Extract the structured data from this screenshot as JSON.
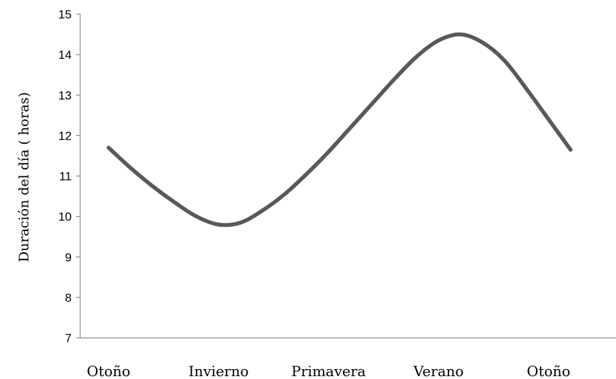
{
  "chart_data": {
    "type": "line",
    "title": "",
    "xlabel": "",
    "ylabel": "Duración del día ( horas)",
    "ylim": [
      7,
      15
    ],
    "yticks": [
      7,
      8,
      9,
      10,
      11,
      12,
      13,
      14,
      15
    ],
    "categories": [
      "Otoño",
      "Invierno",
      "Primavera",
      "Verano",
      "Otoño"
    ],
    "grid": false,
    "legend": "none",
    "series": [
      {
        "color": "#595959",
        "x": [
          0,
          0.2,
          0.4,
          0.6,
          0.8,
          1.0,
          1.2,
          1.4,
          1.6,
          1.8,
          2.0,
          2.2,
          2.4,
          2.6,
          2.8,
          3.0,
          3.2,
          3.4,
          3.6,
          3.8,
          4.0,
          4.2
        ],
        "values": [
          11.7,
          11.2,
          10.75,
          10.35,
          10.0,
          9.8,
          9.85,
          10.15,
          10.55,
          11.05,
          11.6,
          12.2,
          12.8,
          13.4,
          13.95,
          14.35,
          14.5,
          14.3,
          13.85,
          13.15,
          12.4,
          11.65
        ]
      }
    ]
  }
}
